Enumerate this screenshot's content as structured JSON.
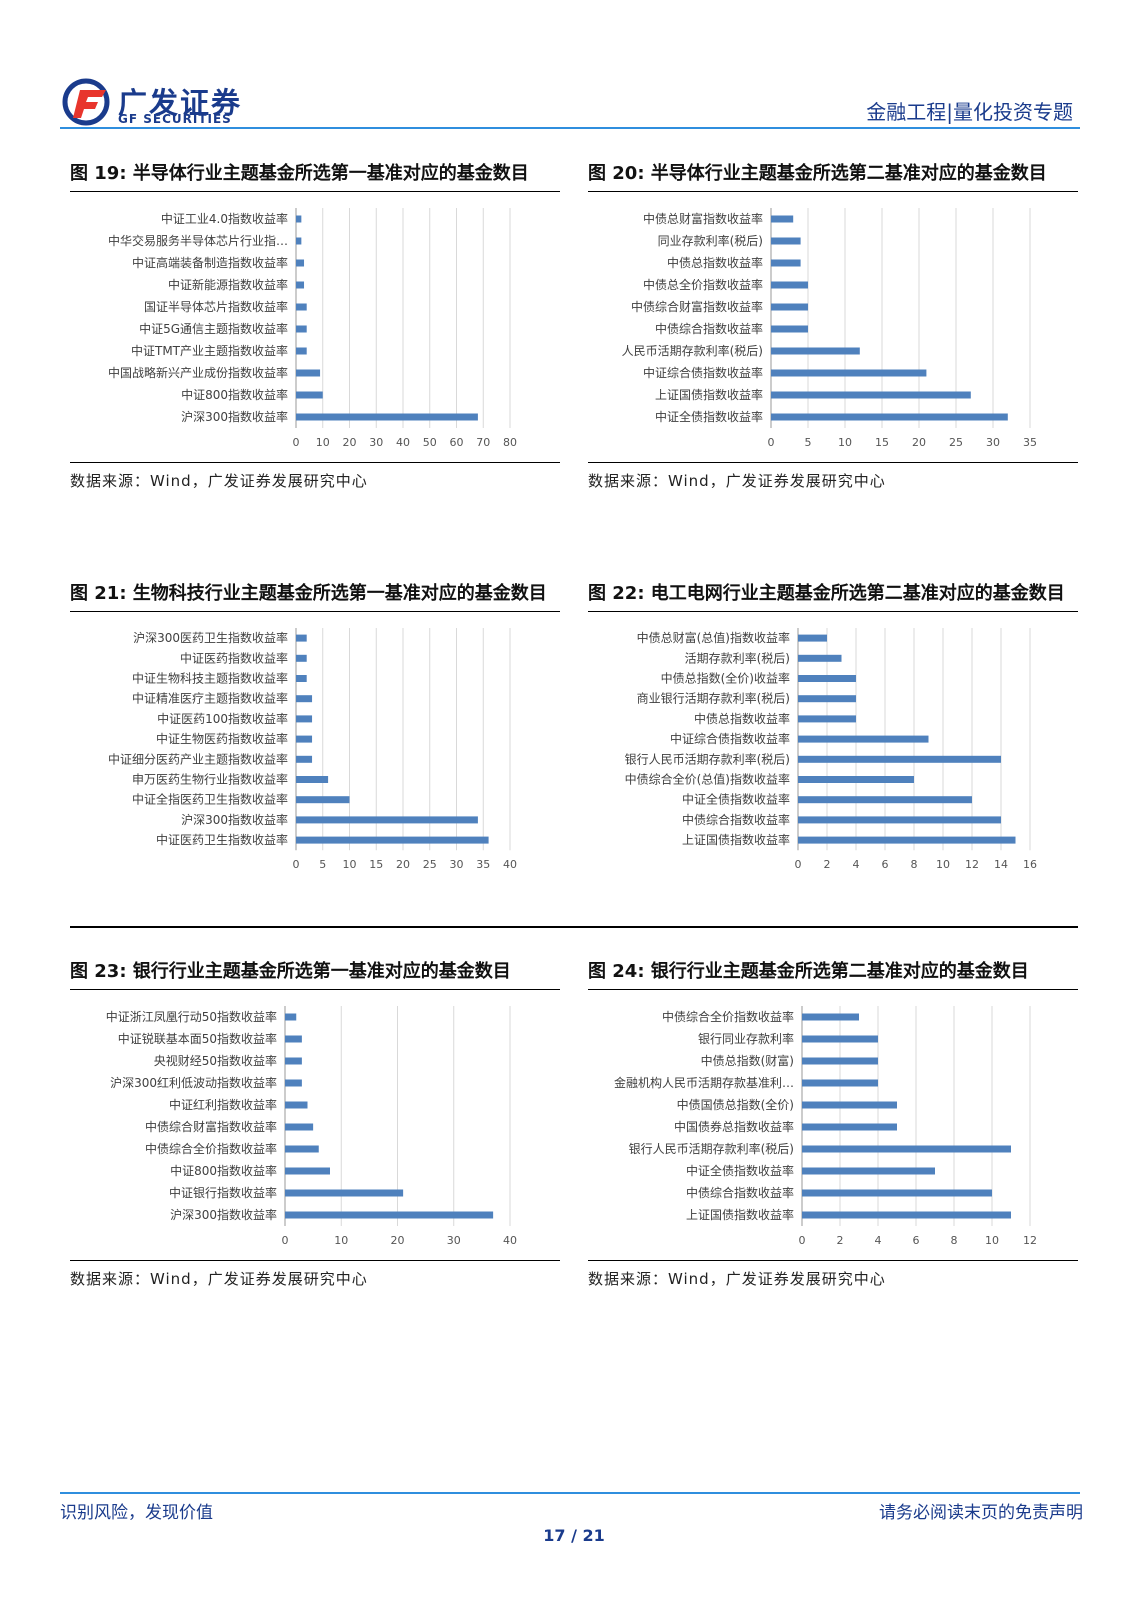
{
  "header": {
    "logo_cn": "广发证券",
    "logo_en": "GF SECURITIES",
    "section": "金融工程|量化投资专题"
  },
  "colors": {
    "bar": "#4f81bd",
    "grid": "#d9d9d9",
    "brand": "#1a3b8c",
    "accent": "#2f8ede",
    "logo_red": "#e8352c"
  },
  "figures": [
    {
      "title": "图 19:  半导体行业主题基金所选第一基准对应的基金数目",
      "source": "数据来源：Wind，广发证券发展研究中心"
    },
    {
      "title": "图 20:  半导体行业主题基金所选第二基准对应的基金数目",
      "source": "数据来源：Wind，广发证券发展研究中心"
    },
    {
      "title": "图 21:  生物科技行业主题基金所选第一基准对应的基金数目",
      "source": ""
    },
    {
      "title": "图 22:  电工电网行业主题基金所选第二基准对应的基金数目",
      "source": ""
    },
    {
      "title": "图 23:  银行行业主题基金所选第一基准对应的基金数目",
      "source": "数据来源：Wind，广发证券发展研究中心"
    },
    {
      "title": "图 24:  银行行业主题基金所选第二基准对应的基金数目",
      "source": "数据来源：Wind，广发证券发展研究中心"
    }
  ],
  "chart_data": [
    {
      "type": "bar",
      "orientation": "horizontal",
      "categories": [
        "中证工业4.0指数收益率",
        "中华交易服务半导体芯片行业指…",
        "中证高端装备制造指数收益率",
        "中证新能源指数收益率",
        "国证半导体芯片指数收益率",
        "中证5G通信主题指数收益率",
        "中证TMT产业主题指数收益率",
        "中国战略新兴产业成份指数收益率",
        "中证800指数收益率",
        "沪深300指数收益率"
      ],
      "values": [
        2,
        2,
        3,
        3,
        4,
        4,
        4,
        9,
        10,
        68
      ],
      "xlim": [
        0,
        80
      ],
      "ticks": [
        0,
        10,
        20,
        30,
        40,
        50,
        60,
        70,
        80
      ]
    },
    {
      "type": "bar",
      "orientation": "horizontal",
      "categories": [
        "中债总财富指数收益率",
        "同业存款利率(税后)",
        "中债总指数收益率",
        "中债总全价指数收益率",
        "中债综合财富指数收益率",
        "中债综合指数收益率",
        "人民币活期存款利率(税后)",
        "中证综合债指数收益率",
        "上证国债指数收益率",
        "中证全债指数收益率"
      ],
      "values": [
        3,
        4,
        4,
        5,
        5,
        5,
        12,
        21,
        27,
        32
      ],
      "xlim": [
        0,
        35
      ],
      "ticks": [
        0,
        5,
        10,
        15,
        20,
        25,
        30,
        35
      ]
    },
    {
      "type": "bar",
      "orientation": "horizontal",
      "categories": [
        "沪深300医药卫生指数收益率",
        "中证医药指数收益率",
        "中证生物科技主题指数收益率",
        "中证精准医疗主题指数收益率",
        "中证医药100指数收益率",
        "中证生物医药指数收益率",
        "中证细分医药产业主题指数收益率",
        "申万医药生物行业指数收益率",
        "中证全指医药卫生指数收益率",
        "沪深300指数收益率",
        "中证医药卫生指数收益率"
      ],
      "values": [
        2,
        2,
        2,
        3,
        3,
        3,
        3,
        6,
        10,
        34,
        36
      ],
      "xlim": [
        0,
        40
      ],
      "ticks": [
        0,
        5,
        10,
        15,
        20,
        25,
        30,
        35,
        40
      ]
    },
    {
      "type": "bar",
      "orientation": "horizontal",
      "categories": [
        "中债总财富(总值)指数收益率",
        "活期存款利率(税后)",
        "中债总指数(全价)收益率",
        "商业银行活期存款利率(税后)",
        "中债总指数收益率",
        "中证综合债指数收益率",
        "银行人民币活期存款利率(税后)",
        "中债综合全价(总值)指数收益率",
        "中证全债指数收益率",
        "中债综合指数收益率",
        "上证国债指数收益率"
      ],
      "values": [
        2,
        3,
        4,
        4,
        4,
        9,
        14,
        8,
        12,
        14,
        15
      ],
      "xlim": [
        0,
        16
      ],
      "ticks": [
        0,
        2,
        4,
        6,
        8,
        10,
        12,
        14,
        16
      ]
    },
    {
      "type": "bar",
      "orientation": "horizontal",
      "categories": [
        "中证浙江凤凰行动50指数收益率",
        "中证锐联基本面50指数收益率",
        "央视财经50指数收益率",
        "沪深300红利低波动指数收益率",
        "中证红利指数收益率",
        "中债综合财富指数收益率",
        "中债综合全价指数收益率",
        "中证800指数收益率",
        "中证银行指数收益率",
        "沪深300指数收益率"
      ],
      "values": [
        2,
        3,
        3,
        3,
        4,
        5,
        6,
        8,
        21,
        37
      ],
      "xlim": [
        0,
        40
      ],
      "ticks": [
        0,
        10,
        20,
        30,
        40
      ]
    },
    {
      "type": "bar",
      "orientation": "horizontal",
      "categories": [
        "中债综合全价指数收益率",
        "银行同业存款利率",
        "中债总指数(财富)",
        "金融机构人民币活期存款基准利…",
        "中债国债总指数(全价)",
        "中国债券总指数收益率",
        "银行人民币活期存款利率(税后)",
        "中证全债指数收益率",
        "中债综合指数收益率",
        "上证国债指数收益率"
      ],
      "values": [
        3,
        4,
        4,
        4,
        5,
        5,
        11,
        7,
        10,
        11
      ],
      "xlim": [
        0,
        12
      ],
      "ticks": [
        0,
        2,
        4,
        6,
        8,
        10,
        12
      ]
    }
  ],
  "footer": {
    "left": "识别风险，发现价值",
    "right": "请务必阅读末页的免责声明",
    "page": "17 / 21"
  }
}
